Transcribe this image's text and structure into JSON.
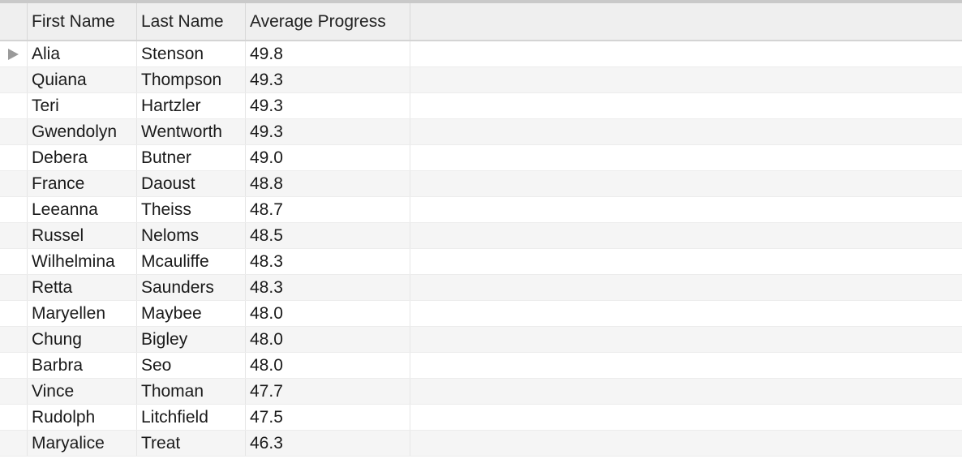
{
  "table": {
    "columns": [
      "First Name",
      "Last Name",
      "Average Progress"
    ],
    "selected_row": 0,
    "rows": [
      {
        "first": "Alia",
        "last": "Stenson",
        "avg": "49.8"
      },
      {
        "first": "Quiana",
        "last": "Thompson",
        "avg": "49.3"
      },
      {
        "first": "Teri",
        "last": "Hartzler",
        "avg": "49.3"
      },
      {
        "first": "Gwendolyn",
        "last": "Wentworth",
        "avg": "49.3"
      },
      {
        "first": "Debera",
        "last": "Butner",
        "avg": "49.0"
      },
      {
        "first": "France",
        "last": "Daoust",
        "avg": "48.8"
      },
      {
        "first": "Leeanna",
        "last": "Theiss",
        "avg": "48.7"
      },
      {
        "first": "Russel",
        "last": "Neloms",
        "avg": "48.5"
      },
      {
        "first": "Wilhelmina",
        "last": "Mcauliffe",
        "avg": "48.3"
      },
      {
        "first": "Retta",
        "last": "Saunders",
        "avg": "48.3"
      },
      {
        "first": "Maryellen",
        "last": "Maybee",
        "avg": "48.0"
      },
      {
        "first": "Chung",
        "last": "Bigley",
        "avg": "48.0"
      },
      {
        "first": "Barbra",
        "last": "Seo",
        "avg": "48.0"
      },
      {
        "first": "Vince",
        "last": "Thoman",
        "avg": "47.7"
      },
      {
        "first": "Rudolph",
        "last": "Litchfield",
        "avg": "47.5"
      },
      {
        "first": "Maryalice",
        "last": "Treat",
        "avg": "46.3"
      }
    ]
  }
}
